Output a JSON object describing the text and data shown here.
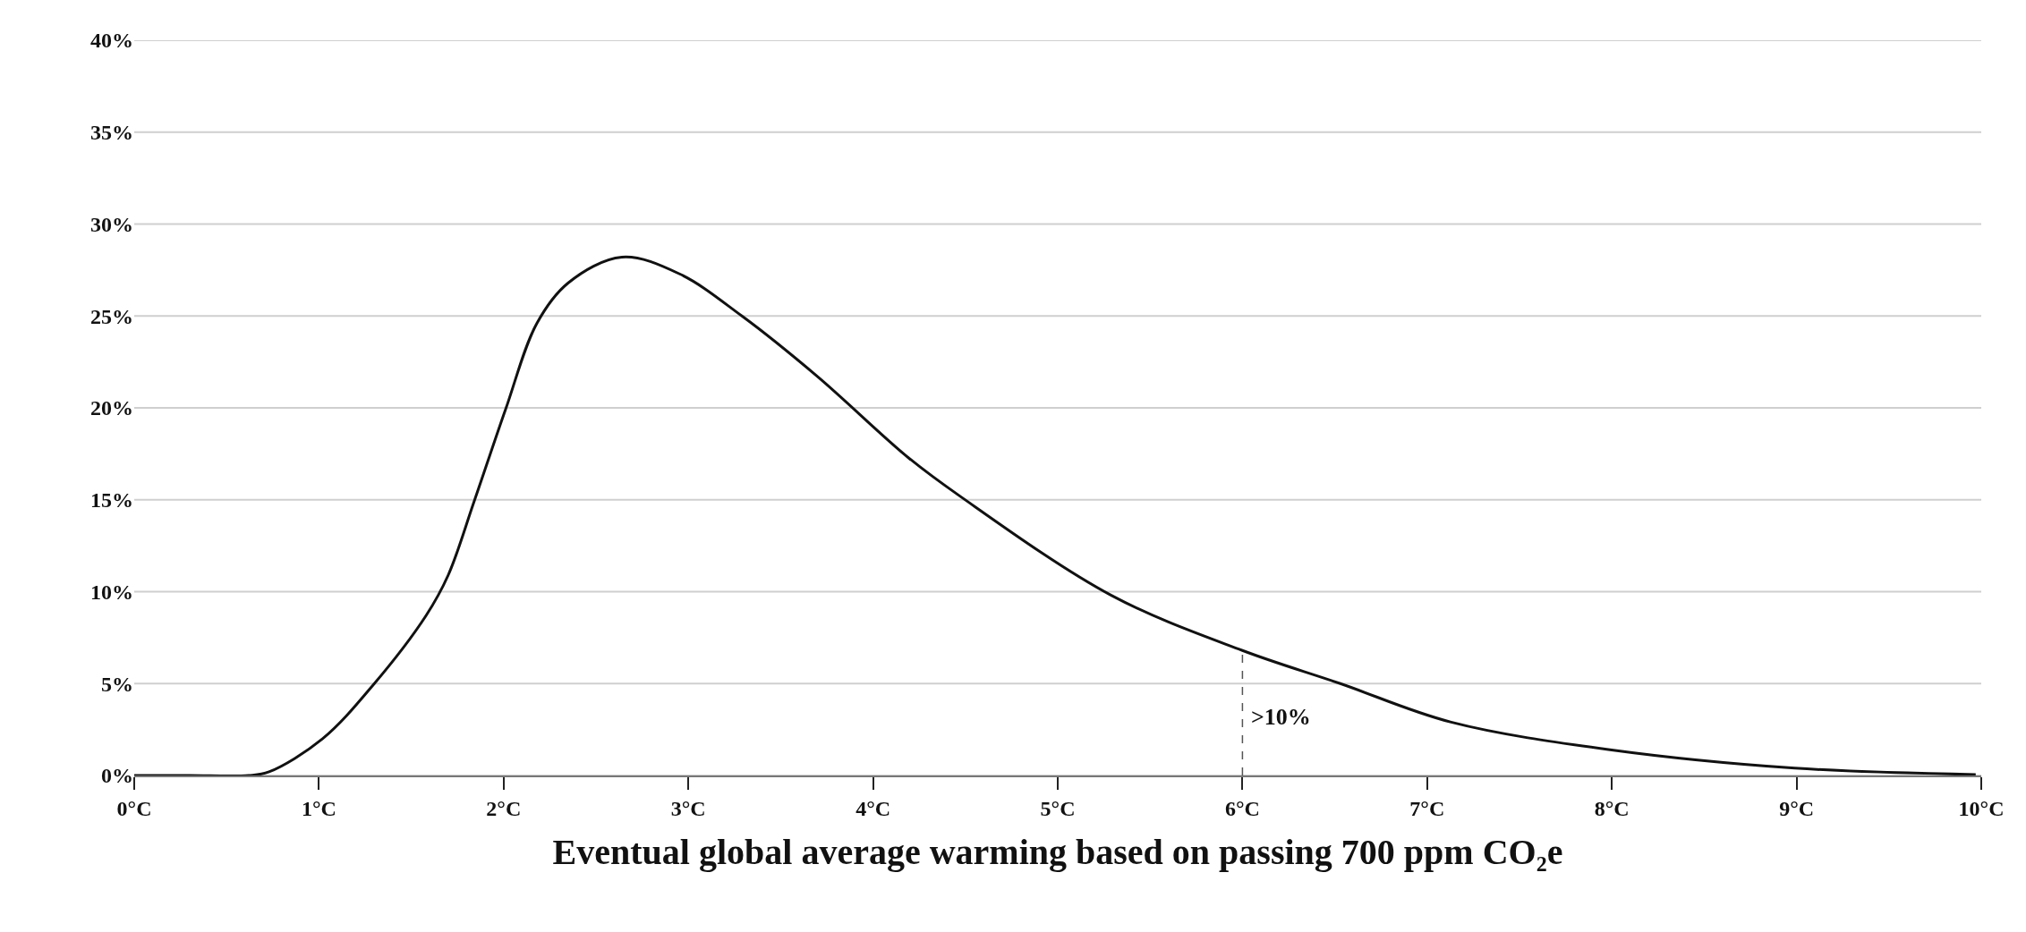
{
  "chart_data": {
    "type": "line",
    "xlabel": "Eventual global average warming based on passing 700 ppm CO₂e",
    "x": [
      0,
      0.3,
      0.62,
      0.73,
      1.02,
      1.3,
      1.58,
      1.7,
      1.84,
      2.01,
      2.18,
      2.35,
      2.64,
      2.95,
      3.29,
      3.7,
      4.19,
      4.47,
      5.29,
      6.0,
      6.53,
      7.13,
      7.99,
      8.99,
      9.97
    ],
    "series": [
      {
        "color": "#111111",
        "values": [
          0,
          0,
          0,
          0.2,
          2.0,
          5.0,
          8.7,
          10.9,
          14.9,
          19.9,
          24.6,
          26.8,
          28.2,
          27.3,
          25.0,
          21.7,
          17.3,
          15.2,
          9.8,
          6.8,
          5.0,
          2.9,
          1.4,
          0.4,
          0.05
        ]
      }
    ],
    "xlim": [
      0,
      10
    ],
    "ylim": [
      0,
      40
    ],
    "xticks": [
      {
        "value": 0,
        "label": "0°C"
      },
      {
        "value": 1,
        "label": "1°C"
      },
      {
        "value": 2,
        "label": "2°C"
      },
      {
        "value": 3,
        "label": "3°C"
      },
      {
        "value": 4,
        "label": "4°C"
      },
      {
        "value": 5,
        "label": "5°C"
      },
      {
        "value": 6,
        "label": "6°C"
      },
      {
        "value": 7,
        "label": "7°C"
      },
      {
        "value": 8,
        "label": "8°C"
      },
      {
        "value": 9,
        "label": "9°C"
      },
      {
        "value": 10,
        "label": "10°C"
      }
    ],
    "yticks": [
      {
        "value": 0,
        "label": "0%"
      },
      {
        "value": 5,
        "label": "5%"
      },
      {
        "value": 10,
        "label": "10%"
      },
      {
        "value": 15,
        "label": "15%"
      },
      {
        "value": 20,
        "label": "20%"
      },
      {
        "value": 25,
        "label": "25%"
      },
      {
        "value": 30,
        "label": "30%"
      },
      {
        "value": 35,
        "label": "35%"
      },
      {
        "value": 40,
        "label": "40%"
      }
    ],
    "ref_lines": [
      {
        "axis": "x",
        "value": 6,
        "line_style": "dashed",
        "color": "#555555"
      }
    ],
    "annotations": [
      ">10%"
    ],
    "grid": "y",
    "marker": "none",
    "line_style": "solid"
  }
}
